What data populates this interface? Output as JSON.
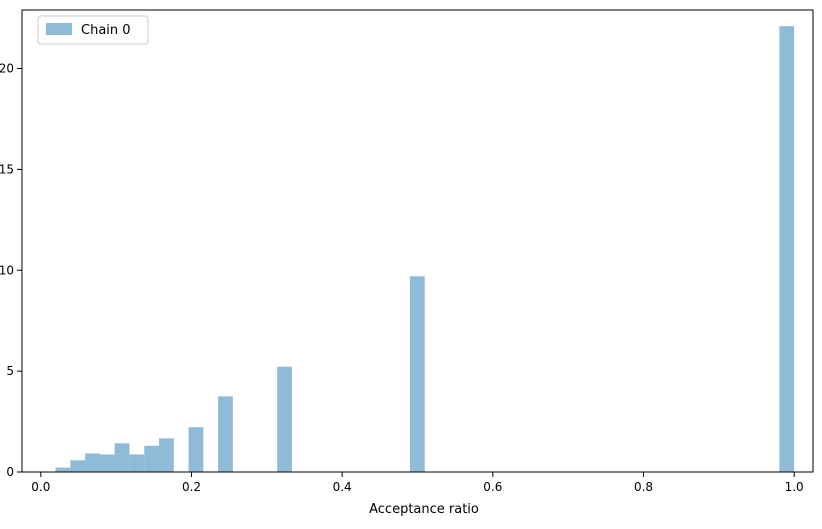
{
  "chart_data": {
    "type": "bar",
    "title": "",
    "xlabel": "Acceptance ratio",
    "ylabel": "",
    "xlim": [
      -0.025,
      1.025
    ],
    "ylim": [
      0,
      22.9
    ],
    "xticks": [
      0.0,
      0.2,
      0.4,
      0.6,
      0.8,
      1.0
    ],
    "xtick_labels": [
      "0.0",
      "0.2",
      "0.4",
      "0.6",
      "0.8",
      "1.0"
    ],
    "yticks": [
      0,
      5,
      10,
      15,
      20
    ],
    "ytick_labels": [
      "0",
      "5",
      "10",
      "15",
      "20"
    ],
    "grid": false,
    "legend": {
      "position": "top-left",
      "entries": [
        "Chain 0"
      ]
    },
    "bar_color": "#1f77b4",
    "bar_alpha": 0.5,
    "bin_width": 0.0196,
    "series": [
      {
        "name": "Chain 0",
        "x": [
          0.0294,
          0.049,
          0.0686,
          0.0882,
          0.1078,
          0.1275,
          0.1471,
          0.1667,
          0.2059,
          0.2451,
          0.3235,
          0.4998,
          0.9902
        ],
        "values": [
          0.22,
          0.58,
          0.92,
          0.87,
          1.42,
          0.87,
          1.3,
          1.67,
          2.22,
          3.75,
          5.22,
          9.7,
          22.1
        ]
      }
    ]
  }
}
